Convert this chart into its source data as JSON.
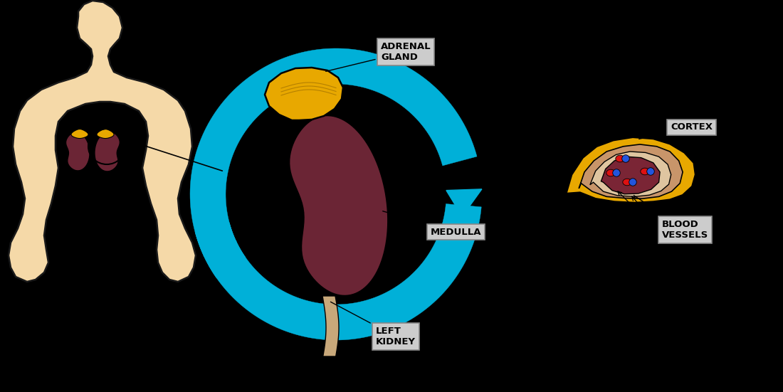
{
  "bg_color": "#000000",
  "body_color": "#f5d9a8",
  "body_outline": "#1a1a1a",
  "kidney_color": "#6b2535",
  "adrenal_color": "#e8a800",
  "blue_color": "#00b0d8",
  "ureter_color": "#c8a87a",
  "cortex_outer_color": "#e8a800",
  "cortex_mid1_color": "#c8956a",
  "cortex_mid2_color": "#dfc5a0",
  "medulla_color": "#7a2535",
  "blood_red": "#dd1111",
  "blood_blue": "#2255dd",
  "label_bg": "#cccccc",
  "label_border": "#888888",
  "label_text": "#000000",
  "labels": {
    "adrenal_gland": "ADRENAL\nGLAND",
    "left_kidney": "LEFT\nKIDNEY",
    "medulla": "MEDULLA",
    "cortex": "CORTEX",
    "blood_vessels": "BLOOD\nVESSELS"
  }
}
